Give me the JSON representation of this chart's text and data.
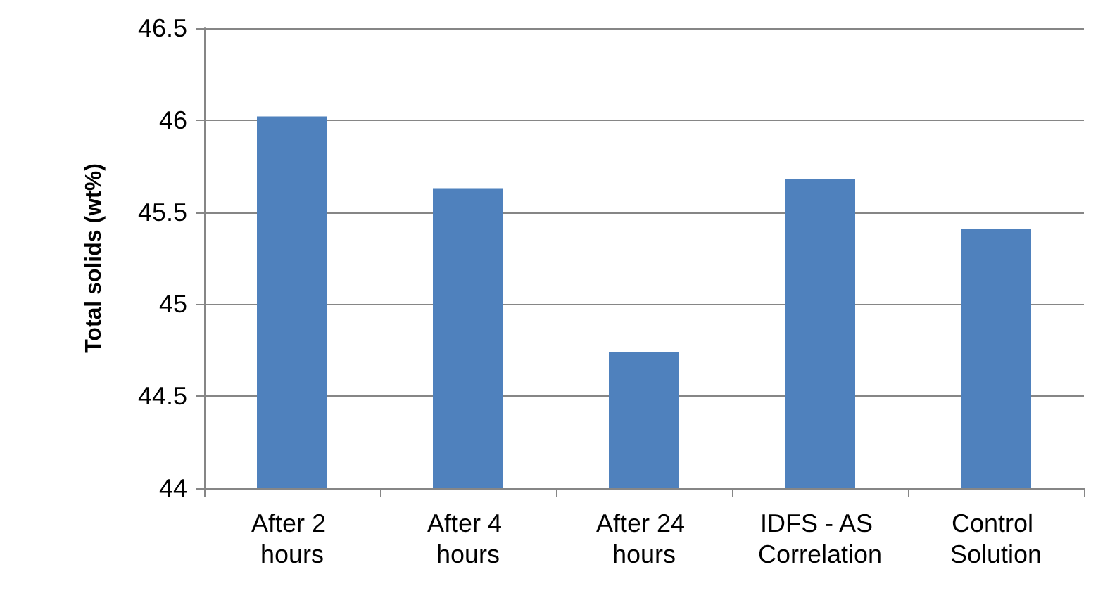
{
  "chart_data": {
    "type": "bar",
    "ylabel": "Total solids (wt%)",
    "categories": [
      "After 2 hours",
      "After 4 hours",
      "After 24 hours",
      "IDFS - AS Correlation",
      "Control Solution"
    ],
    "values": [
      46.02,
      45.63,
      44.74,
      45.68,
      45.41
    ],
    "color": "#4f81bd",
    "ylim": [
      44,
      46.5
    ],
    "yticks": [
      44,
      44.5,
      45,
      45.5,
      46,
      46.5
    ],
    "grid": "y"
  }
}
